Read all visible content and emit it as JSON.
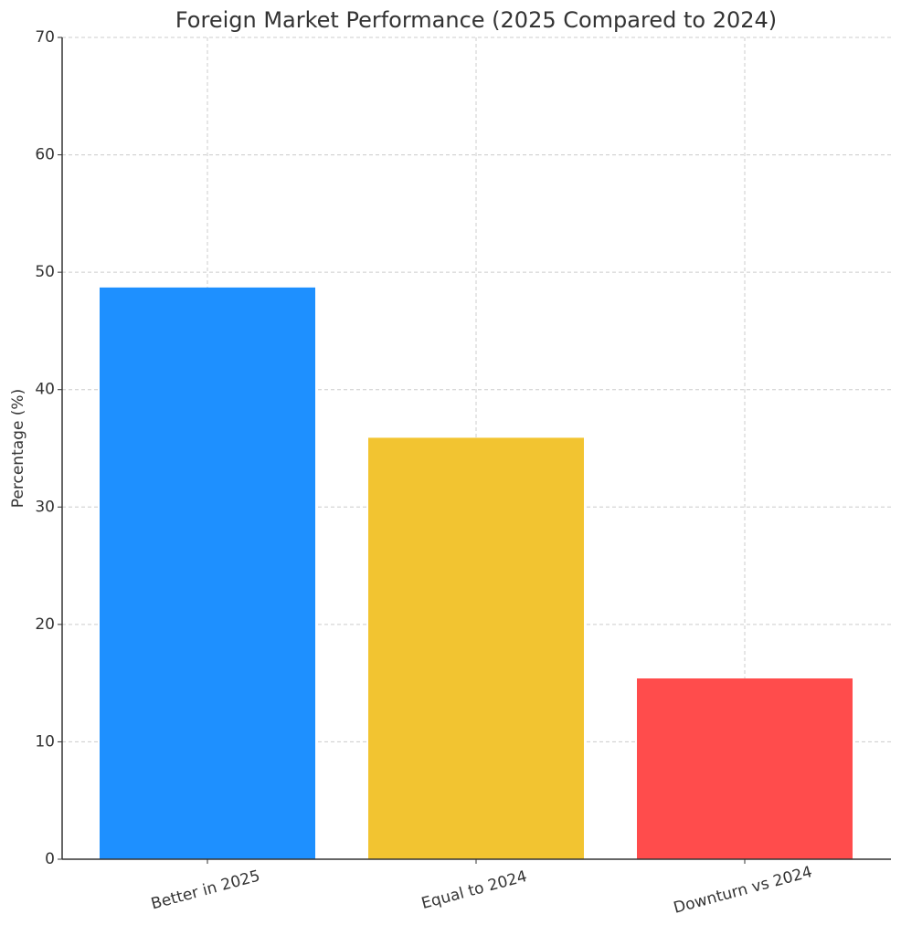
{
  "chart_data": {
    "type": "bar",
    "title": "Foreign Market Performance (2025 Compared to 2024)",
    "y_label": "Percentage (%)",
    "categories": [
      "Better in 2025",
      "Equal to 2024",
      "Downturn vs 2024"
    ],
    "values": [
      48.7,
      35.9,
      15.4
    ],
    "colors": [
      "#1e90ff",
      "#f2c431",
      "#ff4c4c"
    ],
    "ylim": [
      0,
      70
    ],
    "yticks": [
      0,
      10,
      20,
      30,
      40,
      50,
      60,
      70
    ],
    "grid": true
  }
}
